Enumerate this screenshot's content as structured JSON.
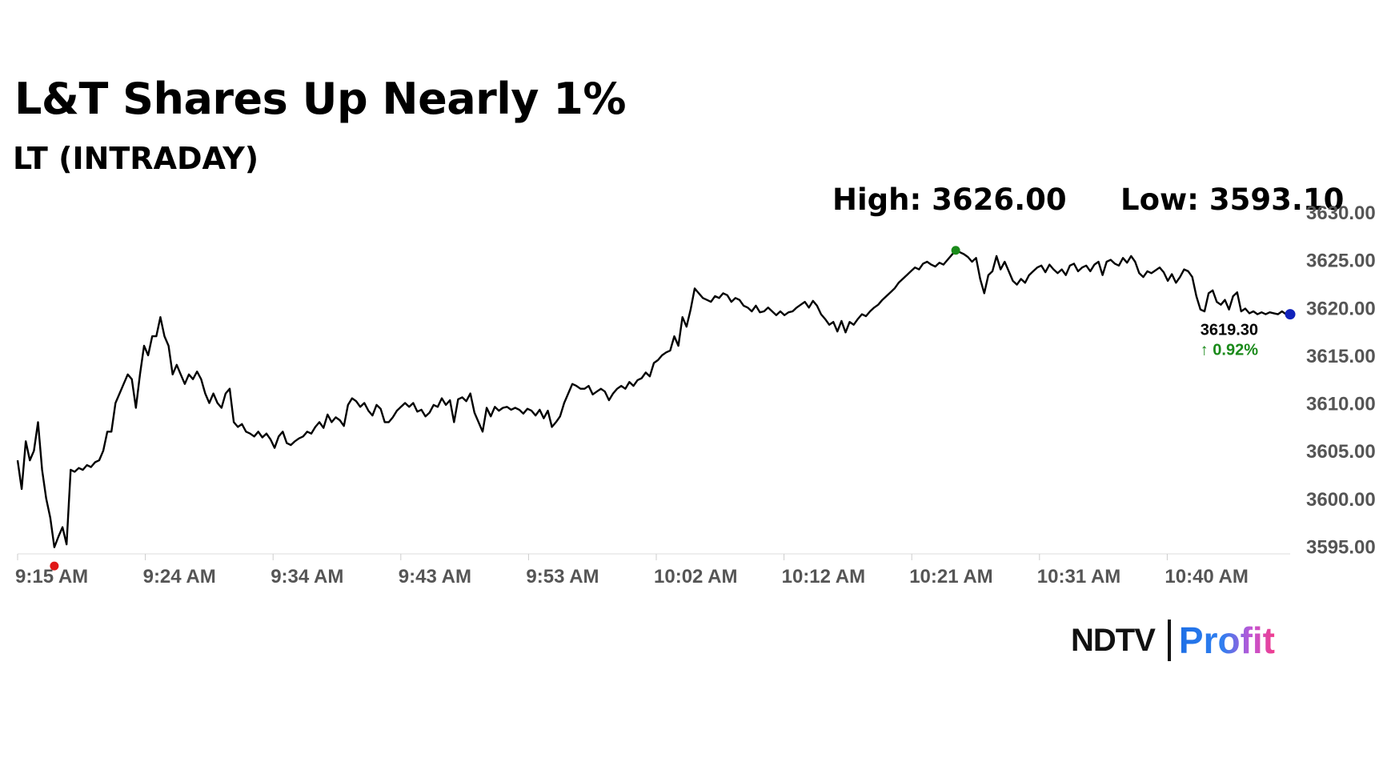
{
  "chart_data": {
    "type": "line",
    "title": "L&T Shares Up Nearly 1%",
    "subtitle": "LT (INTRADAY)",
    "high_label": "High: 3626.00",
    "low_label": "Low: 3593.10",
    "high": 3626.0,
    "low": 3593.1,
    "last_value_label": "3619.30",
    "change_label": "↑ 0.92%",
    "x_tick_labels": [
      "9:15 AM",
      "9:24 AM",
      "9:34 AM",
      "9:43 AM",
      "9:53 AM",
      "10:02 AM",
      "10:12 AM",
      "10:21 AM",
      "10:31 AM",
      "10:40 AM"
    ],
    "y_tick_labels": [
      "3595.00",
      "3600.00",
      "3605.00",
      "3610.00",
      "3615.00",
      "3620.00",
      "3625.00",
      "3630.00"
    ],
    "y_ticks": [
      3595,
      3600,
      3605,
      3610,
      3615,
      3620,
      3625,
      3630
    ],
    "ylim": [
      3594.2,
      3630.0
    ],
    "grid": false,
    "series": [
      {
        "values": [
          3604,
          3601,
          3606,
          3604,
          3605,
          3608,
          3603,
          3600,
          3598,
          3594.9,
          3596,
          3597,
          3595.2,
          3603,
          3602.8,
          3603.2,
          3603,
          3603.5,
          3603.3,
          3603.8,
          3604,
          3605,
          3607,
          3607,
          3610,
          3611,
          3612,
          3613,
          3612.5,
          3609.5,
          3613,
          3616,
          3615,
          3617,
          3617,
          3619,
          3617,
          3616,
          3613,
          3614,
          3613,
          3612,
          3613,
          3612.5,
          3613.3,
          3612.5,
          3611,
          3610,
          3611,
          3610,
          3609.5,
          3611,
          3611.5,
          3608,
          3607.5,
          3607.8,
          3607,
          3606.8,
          3606.5,
          3607,
          3606.4,
          3606.8,
          3606.2,
          3605.3,
          3606.5,
          3607,
          3605.8,
          3605.6,
          3606,
          3606.3,
          3606.5,
          3607,
          3606.8,
          3607.5,
          3608,
          3607.4,
          3608.8,
          3608,
          3608.5,
          3608.2,
          3607.6,
          3609.8,
          3610.5,
          3610.2,
          3609.6,
          3610,
          3609.2,
          3608.7,
          3609.8,
          3609.4,
          3608,
          3608,
          3608.5,
          3609.2,
          3609.6,
          3610,
          3609.6,
          3610,
          3609.1,
          3609.3,
          3608.6,
          3609,
          3609.8,
          3609.6,
          3610.5,
          3609.8,
          3610.3,
          3608,
          3610.4,
          3610.6,
          3610.2,
          3611,
          3609,
          3608,
          3607,
          3609.5,
          3608.6,
          3609.6,
          3609.2,
          3609.5,
          3609.6,
          3609.3,
          3609.5,
          3609.3,
          3608.9,
          3609.4,
          3609.2,
          3608.7,
          3609.3,
          3608.4,
          3609.2,
          3607.5,
          3608,
          3608.6,
          3610,
          3611,
          3612,
          3611.8,
          3611.5,
          3611.5,
          3611.8,
          3610.9,
          3611.2,
          3611.5,
          3611.2,
          3610.3,
          3611,
          3611.5,
          3611.8,
          3611.5,
          3612.2,
          3611.8,
          3612.4,
          3612.6,
          3613.2,
          3612.8,
          3614.2,
          3614.5,
          3615,
          3615.3,
          3615.5,
          3617,
          3616,
          3619,
          3618,
          3619.8,
          3622,
          3621.5,
          3621,
          3620.8,
          3620.6,
          3621.2,
          3621,
          3621.5,
          3621.3,
          3620.6,
          3621,
          3620.8,
          3620.2,
          3620,
          3619.6,
          3620.2,
          3619.5,
          3619.6,
          3620,
          3619.6,
          3619.2,
          3619.6,
          3619.2,
          3619.5,
          3619.6,
          3620,
          3620.3,
          3620.6,
          3620,
          3620.7,
          3620.2,
          3619.3,
          3618.8,
          3618.2,
          3618.5,
          3617.5,
          3618.6,
          3617.4,
          3618.5,
          3618.2,
          3618.8,
          3619.3,
          3619.1,
          3619.6,
          3620,
          3620.3,
          3620.8,
          3621.2,
          3621.6,
          3622,
          3622.6,
          3623,
          3623.4,
          3623.8,
          3624.2,
          3624,
          3624.6,
          3624.8,
          3624.5,
          3624.3,
          3624.7,
          3624.5,
          3625,
          3625.5,
          3626,
          3625.8,
          3625.6,
          3625.3,
          3624.8,
          3625.2,
          3623,
          3621.5,
          3623.4,
          3623.8,
          3625.4,
          3624,
          3624.8,
          3623.8,
          3622.8,
          3622.4,
          3623,
          3622.6,
          3623.4,
          3623.8,
          3624.2,
          3624.4,
          3623.7,
          3624.5,
          3624,
          3623.6,
          3624,
          3623.4,
          3624.4,
          3624.6,
          3623.8,
          3624.2,
          3624.4,
          3623.8,
          3624.5,
          3624.8,
          3623.4,
          3624.8,
          3625,
          3624.6,
          3624.4,
          3625.2,
          3624.7,
          3625.4,
          3624.8,
          3623.6,
          3623.2,
          3623.8,
          3623.6,
          3623.9,
          3624.2,
          3623.7,
          3622.8,
          3623.5,
          3622.6,
          3623.2,
          3624,
          3623.8,
          3623.2,
          3621.2,
          3619.8,
          3619.6,
          3621.5,
          3621.8,
          3620.6,
          3620.3,
          3620.8,
          3619.8,
          3621.2,
          3621.6,
          3619.6,
          3619.9,
          3619.4,
          3619.6,
          3619.3,
          3619.5,
          3619.3,
          3619.5,
          3619.4,
          3619.3,
          3619.6,
          3619.3,
          3619.3
        ]
      }
    ]
  },
  "logo": {
    "brand_left": "NDTV",
    "brand_right": "Profit"
  },
  "colors": {
    "line": "#000000",
    "low_marker": "#e01818",
    "high_marker": "#1a8a1a",
    "last_marker": "#1122bb",
    "change_up": "#1a8a1a",
    "axis_text": "#555555"
  }
}
